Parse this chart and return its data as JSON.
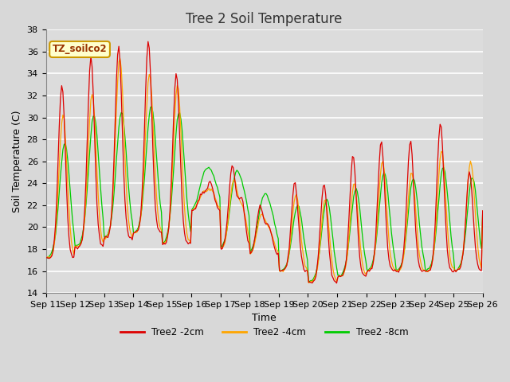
{
  "title": "Tree 2 Soil Temperature",
  "xlabel": "Time",
  "ylabel": "Soil Temperature (C)",
  "ylim": [
    14,
    38
  ],
  "yticks": [
    14,
    16,
    18,
    20,
    22,
    24,
    26,
    28,
    30,
    32,
    34,
    36,
    38
  ],
  "xtick_labels": [
    "Sep 11",
    "Sep 12",
    "Sep 13",
    "Sep 14",
    "Sep 15",
    "Sep 16",
    "Sep 17",
    "Sep 18",
    "Sep 19",
    "Sep 20",
    "Sep 21",
    "Sep 22",
    "Sep 23",
    "Sep 24",
    "Sep 25",
    "Sep 26"
  ],
  "legend_label": "TZ_soilco2",
  "line_colors": [
    "#dd0000",
    "#ffa500",
    "#00cc00"
  ],
  "line_labels": [
    "Tree2 -2cm",
    "Tree2 -4cm",
    "Tree2 -8cm"
  ],
  "plot_bg_color": "#dcdcdc",
  "fig_bg_color": "#d8d8d8",
  "grid_color": "#ffffff",
  "title_fontsize": 12,
  "axis_label_fontsize": 9,
  "tick_fontsize": 8
}
